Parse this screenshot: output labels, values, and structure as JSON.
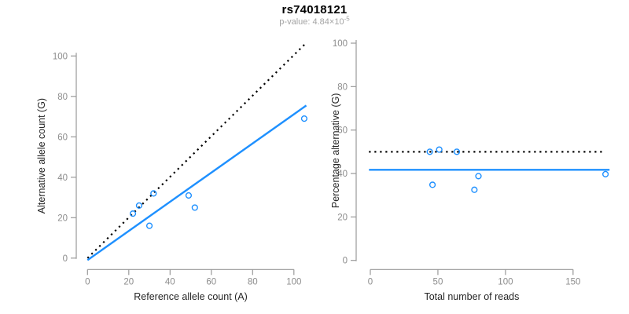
{
  "header": {
    "title": "rs74018121",
    "pvalue_prefix": "p-value: 4.84×10",
    "pvalue_exponent": "-5"
  },
  "colors": {
    "accent_blue": "#1E90FF",
    "dotted_black": "#000000",
    "axis_line": "#999999",
    "tick_text": "#8c8c8c",
    "axis_label_text": "#262626",
    "subtitle_text": "#a3a3a3",
    "background": "#ffffff"
  },
  "chart_data": [
    {
      "type": "scatter",
      "name": "allele-counts",
      "xlabel": "Reference allele count (A)",
      "ylabel": "Alternative allele count (G)",
      "xticks": [
        0,
        20,
        40,
        60,
        80,
        100
      ],
      "yticks": [
        0,
        20,
        40,
        60,
        80,
        100
      ],
      "xlim": [
        0,
        106
      ],
      "ylim": [
        0,
        106
      ],
      "grid": false,
      "legend": false,
      "points": [
        [
          22,
          22
        ],
        [
          25,
          26
        ],
        [
          30,
          16
        ],
        [
          32,
          32
        ],
        [
          49,
          31
        ],
        [
          52,
          25
        ],
        [
          105,
          69
        ]
      ],
      "lines": [
        {
          "name": "identity-line",
          "style": "dotted",
          "color": "dotted_black",
          "from": [
            0,
            0
          ],
          "to": [
            105.5,
            106
          ]
        },
        {
          "name": "fit-line",
          "style": "solid",
          "color": "accent_blue",
          "from": [
            0,
            -1
          ],
          "to": [
            106,
            75.5
          ]
        }
      ]
    },
    {
      "type": "scatter",
      "name": "percentage-alternative",
      "xlabel": "Total number of reads",
      "ylabel": "Percentage alternative (G)",
      "xticks": [
        0,
        50,
        100,
        150
      ],
      "yticks": [
        0,
        20,
        40,
        60,
        80,
        100
      ],
      "xlim": [
        0,
        177
      ],
      "ylim": [
        0,
        100
      ],
      "grid": false,
      "legend": false,
      "points": [
        [
          44,
          50
        ],
        [
          46,
          34.8
        ],
        [
          51,
          51
        ],
        [
          64,
          50
        ],
        [
          77,
          32.5
        ],
        [
          80,
          38.8
        ],
        [
          174,
          39.7
        ]
      ],
      "lines": [
        {
          "name": "expected-50pct-line",
          "style": "dotted",
          "color": "dotted_black",
          "from": [
            -1,
            50
          ],
          "to": [
            174,
            50
          ]
        },
        {
          "name": "fitted-mean-line",
          "style": "solid",
          "color": "accent_blue",
          "from": [
            -1,
            41.7
          ],
          "to": [
            177,
            41.7
          ]
        }
      ]
    }
  ]
}
